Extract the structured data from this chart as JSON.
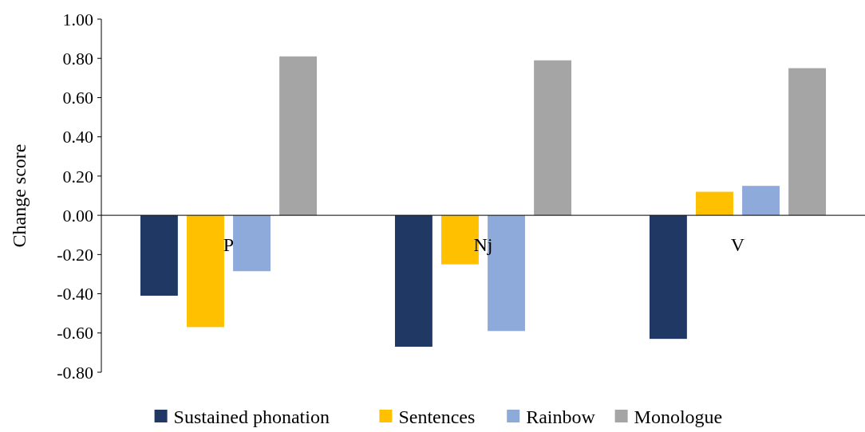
{
  "chart_data": {
    "type": "bar",
    "ylabel": "Change score",
    "categories": [
      "P",
      "Nj",
      "V"
    ],
    "series": [
      {
        "name": "Sustained phonation",
        "color": "#1f3864",
        "values": [
          -0.41,
          -0.67,
          -0.63
        ]
      },
      {
        "name": "Sentences",
        "color": "#ffc000",
        "values": [
          -0.57,
          -0.25,
          0.12
        ]
      },
      {
        "name": "Rainbow",
        "color": "#8eaadb",
        "values": [
          -0.285,
          -0.59,
          0.15
        ]
      },
      {
        "name": "Monologue",
        "color": "#a5a5a5",
        "values": [
          0.81,
          0.79,
          0.75
        ]
      }
    ],
    "ylim": [
      -0.8,
      1.0
    ],
    "yticks": [
      {
        "value": -0.8,
        "label": "-0.80"
      },
      {
        "value": -0.6,
        "label": "-0.60"
      },
      {
        "value": -0.4,
        "label": "-0.40"
      },
      {
        "value": -0.2,
        "label": "-0.20"
      },
      {
        "value": 0,
        "label": "0.00"
      },
      {
        "value": 0.2,
        "label": "0.20"
      },
      {
        "value": 0.4,
        "label": "0.40"
      },
      {
        "value": 0.6,
        "label": "0.60"
      },
      {
        "value": 0.8,
        "label": "0.80"
      },
      {
        "value": 1.0,
        "label": "1.00"
      }
    ],
    "grid": false,
    "legend": "bottom"
  }
}
